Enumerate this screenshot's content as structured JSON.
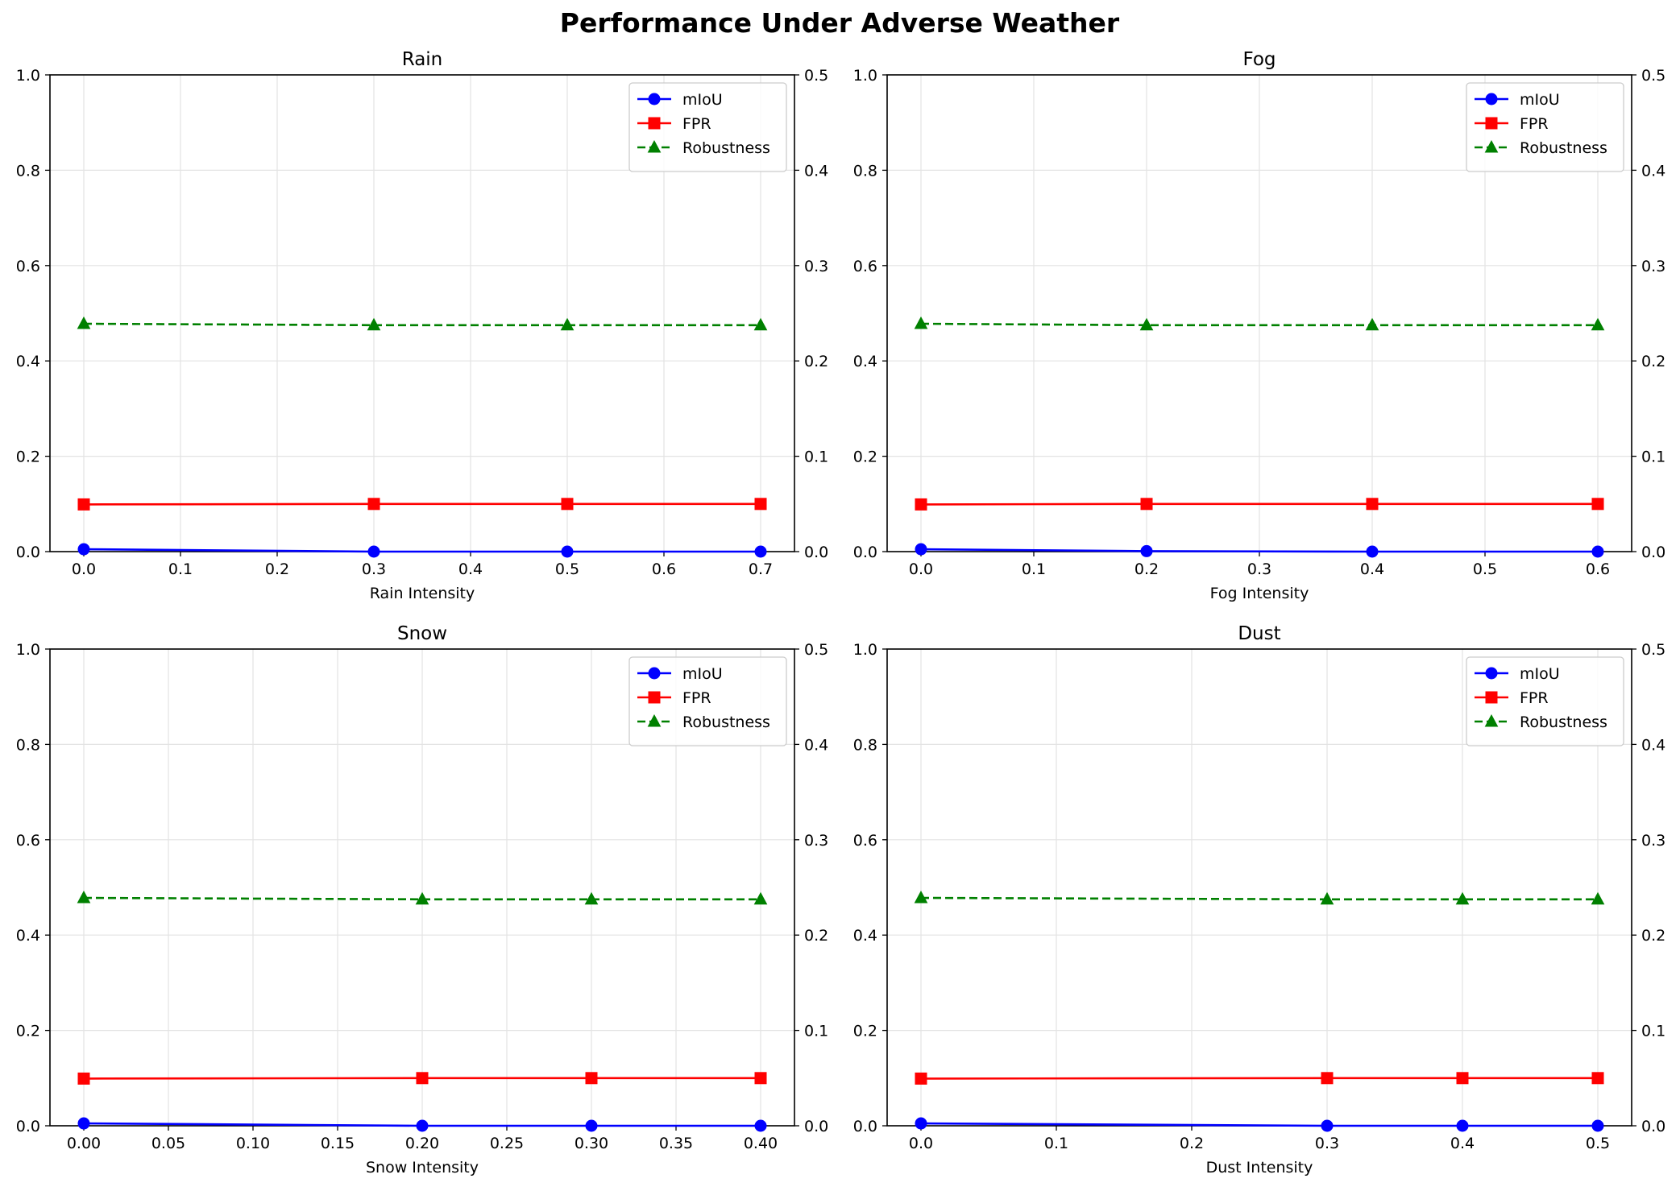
{
  "figure": {
    "title": "Performance Under Adverse Weather"
  },
  "colors": {
    "miou": "#0000ff",
    "fpr": "#ff0000",
    "robustness": "#008000",
    "grid": "#e3e3e3"
  },
  "chart_data": [
    {
      "type": "line",
      "title": "Rain",
      "xlabel": "Rain Intensity",
      "xlim": [
        -0.035,
        0.735
      ],
      "xticks": [
        0.0,
        0.1,
        0.2,
        0.3,
        0.4,
        0.5,
        0.6,
        0.7
      ],
      "xtick_labels": [
        "0.0",
        "0.1",
        "0.2",
        "0.3",
        "0.4",
        "0.5",
        "0.6",
        "0.7"
      ],
      "ylim_left": [
        0,
        1
      ],
      "yticks_left": [
        "0.0",
        "0.2",
        "0.4",
        "0.6",
        "0.8",
        "1.0"
      ],
      "ylim_right": [
        0,
        0.5
      ],
      "yticks_right": [
        "0.0",
        "0.1",
        "0.2",
        "0.3",
        "0.4",
        "0.5"
      ],
      "grid": true,
      "legend_position": "top-right",
      "x": [
        0.0,
        0.3,
        0.5,
        0.7
      ],
      "series": [
        {
          "name": "mIoU",
          "axis": "left",
          "marker": "circle",
          "dash": "solid",
          "values": [
            0.005,
            0.0,
            0.0,
            0.0
          ]
        },
        {
          "name": "FPR",
          "axis": "left",
          "marker": "square",
          "dash": "solid",
          "values": [
            0.099,
            0.1,
            0.1,
            0.1
          ]
        },
        {
          "name": "Robustness",
          "axis": "left",
          "marker": "triangle",
          "dash": "dashed",
          "values": [
            0.478,
            0.475,
            0.475,
            0.475
          ]
        }
      ]
    },
    {
      "type": "line",
      "title": "Fog",
      "xlabel": "Fog Intensity",
      "xlim": [
        -0.03,
        0.63
      ],
      "xticks": [
        0.0,
        0.1,
        0.2,
        0.3,
        0.4,
        0.5,
        0.6
      ],
      "xtick_labels": [
        "0.0",
        "0.1",
        "0.2",
        "0.3",
        "0.4",
        "0.5",
        "0.6"
      ],
      "ylim_left": [
        0,
        1
      ],
      "yticks_left": [
        "0.0",
        "0.2",
        "0.4",
        "0.6",
        "0.8",
        "1.0"
      ],
      "ylim_right": [
        0,
        0.5
      ],
      "yticks_right": [
        "0.0",
        "0.1",
        "0.2",
        "0.3",
        "0.4",
        "0.5"
      ],
      "grid": true,
      "legend_position": "top-right",
      "x": [
        0.0,
        0.2,
        0.4,
        0.6
      ],
      "series": [
        {
          "name": "mIoU",
          "axis": "left",
          "marker": "circle",
          "dash": "solid",
          "values": [
            0.005,
            0.001,
            0.0,
            0.0
          ]
        },
        {
          "name": "FPR",
          "axis": "left",
          "marker": "square",
          "dash": "solid",
          "values": [
            0.099,
            0.1,
            0.1,
            0.1
          ]
        },
        {
          "name": "Robustness",
          "axis": "left",
          "marker": "triangle",
          "dash": "dashed",
          "values": [
            0.478,
            0.475,
            0.475,
            0.475
          ]
        }
      ]
    },
    {
      "type": "line",
      "title": "Snow",
      "xlabel": "Snow Intensity",
      "xlim": [
        -0.02,
        0.42
      ],
      "xticks": [
        0.0,
        0.05,
        0.1,
        0.15,
        0.2,
        0.25,
        0.3,
        0.35,
        0.4
      ],
      "xtick_labels": [
        "0.00",
        "0.05",
        "0.10",
        "0.15",
        "0.20",
        "0.25",
        "0.30",
        "0.35",
        "0.40"
      ],
      "ylim_left": [
        0,
        1
      ],
      "yticks_left": [
        "0.0",
        "0.2",
        "0.4",
        "0.6",
        "0.8",
        "1.0"
      ],
      "ylim_right": [
        0,
        0.5
      ],
      "yticks_right": [
        "0.0",
        "0.1",
        "0.2",
        "0.3",
        "0.4",
        "0.5"
      ],
      "grid": true,
      "legend_position": "top-right",
      "x": [
        0.0,
        0.2,
        0.3,
        0.4
      ],
      "series": [
        {
          "name": "mIoU",
          "axis": "left",
          "marker": "circle",
          "dash": "solid",
          "values": [
            0.005,
            0.0,
            0.0,
            0.0
          ]
        },
        {
          "name": "FPR",
          "axis": "left",
          "marker": "square",
          "dash": "solid",
          "values": [
            0.099,
            0.1,
            0.1,
            0.1
          ]
        },
        {
          "name": "Robustness",
          "axis": "left",
          "marker": "triangle",
          "dash": "dashed",
          "values": [
            0.478,
            0.475,
            0.475,
            0.475
          ]
        }
      ]
    },
    {
      "type": "line",
      "title": "Dust",
      "xlabel": "Dust Intensity",
      "xlim": [
        -0.025,
        0.525
      ],
      "xticks": [
        0.0,
        0.1,
        0.2,
        0.3,
        0.4,
        0.5
      ],
      "xtick_labels": [
        "0.0",
        "0.1",
        "0.2",
        "0.3",
        "0.4",
        "0.5"
      ],
      "ylim_left": [
        0,
        1
      ],
      "yticks_left": [
        "0.0",
        "0.2",
        "0.4",
        "0.6",
        "0.8",
        "1.0"
      ],
      "ylim_right": [
        0,
        0.5
      ],
      "yticks_right": [
        "0.0",
        "0.1",
        "0.2",
        "0.3",
        "0.4",
        "0.5"
      ],
      "grid": true,
      "legend_position": "top-right",
      "x": [
        0.0,
        0.3,
        0.4,
        0.5
      ],
      "series": [
        {
          "name": "mIoU",
          "axis": "left",
          "marker": "circle",
          "dash": "solid",
          "values": [
            0.005,
            0.0,
            0.0,
            0.0
          ]
        },
        {
          "name": "FPR",
          "axis": "left",
          "marker": "square",
          "dash": "solid",
          "values": [
            0.099,
            0.1,
            0.1,
            0.1
          ]
        },
        {
          "name": "Robustness",
          "axis": "left",
          "marker": "triangle",
          "dash": "dashed",
          "values": [
            0.478,
            0.475,
            0.475,
            0.475
          ]
        }
      ]
    }
  ]
}
